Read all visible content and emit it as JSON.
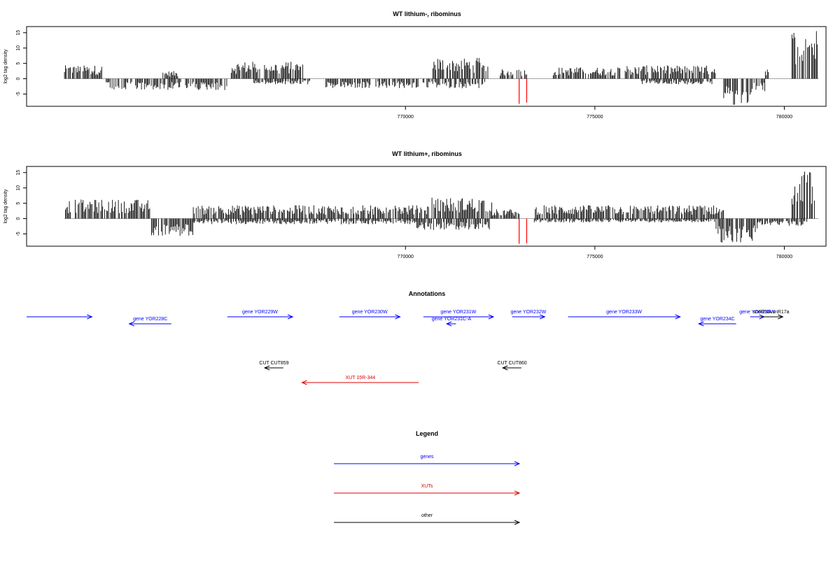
{
  "chart_data": [
    {
      "type": "bar",
      "title": "WT lithium-, ribominus",
      "ylabel": "log2 tag density",
      "xlabel": "",
      "ylim": [
        -9,
        17
      ],
      "xlim": [
        760000,
        781100
      ],
      "x_ticks": [
        "770000",
        "775000",
        "780000"
      ],
      "y_ticks": [
        "15",
        "10",
        "5",
        "0",
        "-5"
      ],
      "grid": false,
      "plus_strand_regions": [
        {
          "start": 761000,
          "end": 762000,
          "height": 3.5
        },
        {
          "start": 763600,
          "end": 764000,
          "height": 2
        },
        {
          "start": 765400,
          "end": 767300,
          "height": 4.5
        },
        {
          "start": 770700,
          "end": 772200,
          "height": 5.5
        },
        {
          "start": 772500,
          "end": 773200,
          "height": 2.5
        },
        {
          "start": 773900,
          "end": 775700,
          "height": 3
        },
        {
          "start": 775800,
          "end": 778200,
          "height": 3.5
        },
        {
          "start": 779500,
          "end": 779600,
          "height": 3
        },
        {
          "start": 780200,
          "end": 780900,
          "height": 13
        }
      ],
      "minus_strand_regions": [
        {
          "start": 762100,
          "end": 765300,
          "height": 3
        },
        {
          "start": 766000,
          "end": 767500,
          "height": 1.5
        },
        {
          "start": 767900,
          "end": 770800,
          "height": 2.5
        },
        {
          "start": 770800,
          "end": 772100,
          "height": 2.5
        },
        {
          "start": 776200,
          "end": 778100,
          "height": 1.5
        },
        {
          "start": 778400,
          "end": 779200,
          "height": 7
        },
        {
          "start": 779200,
          "end": 779500,
          "height": 3.5
        }
      ],
      "highlight_bars": [
        {
          "x": 773000,
          "value": -8.2,
          "color": "#ff0000"
        },
        {
          "x": 773200,
          "value": -7.8,
          "color": "#ff0000"
        }
      ]
    },
    {
      "type": "bar",
      "title": "WT lithium+, ribominus",
      "ylabel": "log2 tag density",
      "xlabel": "",
      "ylim": [
        -9,
        17
      ],
      "xlim": [
        760000,
        781100
      ],
      "x_ticks": [
        "770000",
        "775000",
        "780000"
      ],
      "y_ticks": [
        "15",
        "10",
        "5",
        "0",
        "-5"
      ],
      "grid": false,
      "plus_strand_regions": [
        {
          "start": 761000,
          "end": 763300,
          "height": 5
        },
        {
          "start": 764400,
          "end": 770700,
          "height": 3.5
        },
        {
          "start": 770700,
          "end": 772300,
          "height": 5.5
        },
        {
          "start": 772300,
          "end": 773000,
          "height": 2.5
        },
        {
          "start": 773400,
          "end": 778400,
          "height": 3.5
        },
        {
          "start": 780200,
          "end": 780800,
          "height": 12.5
        }
      ],
      "minus_strand_regions": [
        {
          "start": 763300,
          "end": 764400,
          "height": 4.5
        },
        {
          "start": 764400,
          "end": 770300,
          "height": 1.5
        },
        {
          "start": 770300,
          "end": 772300,
          "height": 3
        },
        {
          "start": 773400,
          "end": 778200,
          "height": 1
        },
        {
          "start": 778200,
          "end": 779300,
          "height": 6.5
        },
        {
          "start": 779300,
          "end": 780600,
          "height": 2
        }
      ],
      "highlight_bars": [
        {
          "x": 773000,
          "value": -8.2,
          "color": "#ff0000"
        },
        {
          "x": 773200,
          "value": -8.1,
          "color": "#ff0000"
        }
      ]
    }
  ],
  "annotations": {
    "title": "Annotations",
    "colors": {
      "genes": "#0000ff",
      "xuts": "#dd0000",
      "other": "#000000"
    },
    "features": [
      {
        "label": "",
        "start": 760000,
        "end": 761400,
        "strand": "+",
        "color": "#0000ff",
        "row": 0
      },
      {
        "label": "gene YOR228C",
        "start": 762200,
        "end": 763100,
        "strand": "-",
        "color": "#0000ff",
        "row": 0
      },
      {
        "label": "gene YOR229W",
        "start": 764300,
        "end": 765700,
        "strand": "+",
        "color": "#0000ff",
        "row": 0
      },
      {
        "label": "gene YOR230W",
        "start": 766700,
        "end": 768000,
        "strand": "+",
        "color": "#0000ff",
        "row": 0
      },
      {
        "label": "gene YOR231W",
        "start": 768500,
        "end": 770000,
        "strand": "+",
        "color": "#0000ff",
        "row": 0
      },
      {
        "label": "gene YOR231C-A",
        "start": 769000,
        "end": 769200,
        "strand": "-",
        "color": "#0000ff",
        "row": 0
      },
      {
        "label": "gene YOR232W",
        "start": 770400,
        "end": 771100,
        "strand": "+",
        "color": "#0000ff",
        "row": 0
      },
      {
        "label": "gene YOR233W",
        "start": 771600,
        "end": 774000,
        "strand": "+",
        "color": "#0000ff",
        "row": 0
      },
      {
        "label": "gene YOR234C",
        "start": 774400,
        "end": 775200,
        "strand": "-",
        "color": "#0000ff",
        "row": 0
      },
      {
        "label": "gene YOR235W",
        "start": 775500,
        "end": 775800,
        "strand": "+",
        "color": "#0000ff",
        "row": 0
      },
      {
        "label": "snoRNA snR17a",
        "start": 775700,
        "end": 776200,
        "strand": "+",
        "color": "#000000",
        "row": 0
      },
      {
        "label": "CUT CUT859",
        "start": 765100,
        "end": 765500,
        "strand": "-",
        "color": "#000000",
        "row": 1
      },
      {
        "label": "CUT CUT860",
        "start": 770200,
        "end": 770600,
        "strand": "-",
        "color": "#000000",
        "row": 1
      },
      {
        "label": "XUT 15R-344",
        "start": 765900,
        "end": 768400,
        "strand": "-",
        "color": "#dd0000",
        "row": 2
      }
    ]
  },
  "legend": {
    "title": "Legend",
    "items": [
      {
        "label": "genes",
        "color": "#0000ff"
      },
      {
        "label": "XUTs",
        "color": "#dd0000"
      },
      {
        "label": "other",
        "color": "#000000"
      }
    ]
  }
}
